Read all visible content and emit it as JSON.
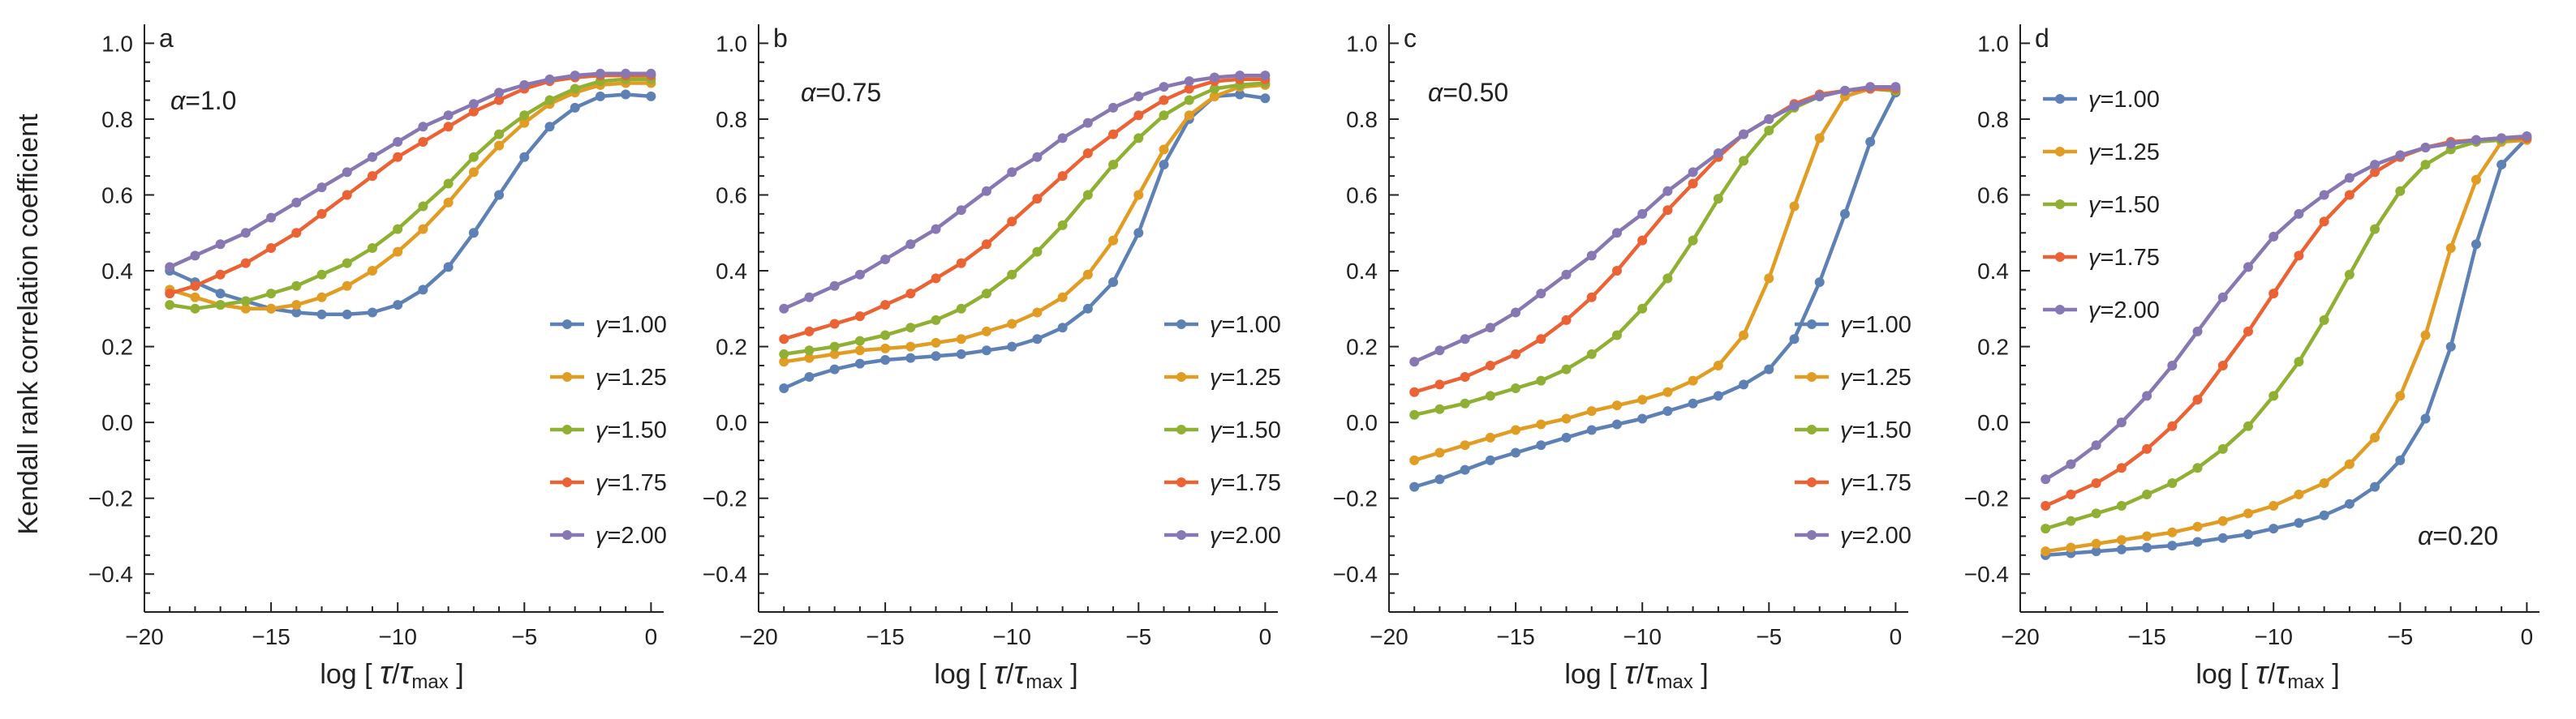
{
  "figure": {
    "ylabel": "Kendall rank correlation coefficient",
    "xlabel": {
      "prefix": "log",
      "tau": "τ",
      "slash": "/",
      "max": "max"
    }
  },
  "colors": {
    "γ=1.00": "#5e81b5",
    "γ=1.25": "#e19c24",
    "γ=1.50": "#8fb032",
    "γ=1.75": "#eb6235",
    "γ=2.00": "#8778b3"
  },
  "chart_data": [
    {
      "type": "line",
      "panel": "a",
      "annotation": "α=1.0",
      "xlabel": "log [τ/τmax]",
      "ylabel": "Kendall rank correlation coefficient",
      "xlim": [
        -20,
        0.5
      ],
      "ylim": [
        -0.5,
        1.05
      ],
      "xticks": [
        -20,
        -15,
        -10,
        -5,
        0
      ],
      "yticks": [
        -0.4,
        -0.2,
        0.0,
        0.2,
        0.4,
        0.6,
        0.8,
        1.0
      ],
      "legend": "right",
      "x": [
        -19,
        -18,
        -17,
        -16,
        -15,
        -14,
        -13,
        -12,
        -11,
        -10,
        -9,
        -8,
        -7,
        -6,
        -5,
        -4,
        -3,
        -2,
        -1,
        0
      ],
      "series": [
        {
          "name": "γ=1.00",
          "values": [
            0.4,
            0.37,
            0.34,
            0.32,
            0.3,
            0.29,
            0.285,
            0.285,
            0.29,
            0.31,
            0.35,
            0.41,
            0.5,
            0.6,
            0.7,
            0.78,
            0.83,
            0.86,
            0.865,
            0.86
          ]
        },
        {
          "name": "γ=1.25",
          "values": [
            0.35,
            0.33,
            0.31,
            0.3,
            0.3,
            0.31,
            0.33,
            0.36,
            0.4,
            0.45,
            0.51,
            0.58,
            0.66,
            0.73,
            0.79,
            0.84,
            0.87,
            0.89,
            0.895,
            0.895
          ]
        },
        {
          "name": "γ=1.50",
          "values": [
            0.31,
            0.3,
            0.31,
            0.32,
            0.34,
            0.36,
            0.39,
            0.42,
            0.46,
            0.51,
            0.57,
            0.63,
            0.7,
            0.76,
            0.81,
            0.85,
            0.88,
            0.9,
            0.905,
            0.905
          ]
        },
        {
          "name": "γ=1.75",
          "values": [
            0.34,
            0.36,
            0.39,
            0.42,
            0.46,
            0.5,
            0.55,
            0.6,
            0.65,
            0.7,
            0.74,
            0.78,
            0.82,
            0.85,
            0.88,
            0.9,
            0.91,
            0.915,
            0.915,
            0.915
          ]
        },
        {
          "name": "γ=2.00",
          "values": [
            0.41,
            0.44,
            0.47,
            0.5,
            0.54,
            0.58,
            0.62,
            0.66,
            0.7,
            0.74,
            0.78,
            0.81,
            0.84,
            0.87,
            0.89,
            0.905,
            0.915,
            0.92,
            0.92,
            0.92
          ]
        }
      ]
    },
    {
      "type": "line",
      "panel": "b",
      "annotation": "α=0.75",
      "xlabel": "log [τ/τmax]",
      "xlim": [
        -20,
        0.5
      ],
      "ylim": [
        -0.5,
        1.05
      ],
      "xticks": [
        -20,
        -15,
        -10,
        -5,
        0
      ],
      "yticks": [
        -0.4,
        -0.2,
        0.0,
        0.2,
        0.4,
        0.6,
        0.8,
        1.0
      ],
      "legend": "right",
      "x": [
        -19,
        -18,
        -17,
        -16,
        -15,
        -14,
        -13,
        -12,
        -11,
        -10,
        -9,
        -8,
        -7,
        -6,
        -5,
        -4,
        -3,
        -2,
        -1,
        0
      ],
      "series": [
        {
          "name": "γ=1.00",
          "values": [
            0.09,
            0.12,
            0.14,
            0.155,
            0.165,
            0.17,
            0.175,
            0.18,
            0.19,
            0.2,
            0.22,
            0.25,
            0.3,
            0.37,
            0.5,
            0.68,
            0.8,
            0.86,
            0.865,
            0.855
          ]
        },
        {
          "name": "γ=1.25",
          "values": [
            0.16,
            0.17,
            0.18,
            0.19,
            0.195,
            0.2,
            0.21,
            0.22,
            0.24,
            0.26,
            0.29,
            0.33,
            0.39,
            0.48,
            0.6,
            0.72,
            0.81,
            0.86,
            0.885,
            0.89
          ]
        },
        {
          "name": "γ=1.50",
          "values": [
            0.18,
            0.19,
            0.2,
            0.215,
            0.23,
            0.25,
            0.27,
            0.3,
            0.34,
            0.39,
            0.45,
            0.52,
            0.6,
            0.68,
            0.75,
            0.81,
            0.85,
            0.88,
            0.89,
            0.895
          ]
        },
        {
          "name": "γ=1.75",
          "values": [
            0.22,
            0.24,
            0.26,
            0.28,
            0.31,
            0.34,
            0.38,
            0.42,
            0.47,
            0.53,
            0.59,
            0.65,
            0.71,
            0.76,
            0.81,
            0.85,
            0.88,
            0.9,
            0.905,
            0.905
          ]
        },
        {
          "name": "γ=2.00",
          "values": [
            0.3,
            0.33,
            0.36,
            0.39,
            0.43,
            0.47,
            0.51,
            0.56,
            0.61,
            0.66,
            0.7,
            0.75,
            0.79,
            0.83,
            0.86,
            0.885,
            0.9,
            0.91,
            0.915,
            0.915
          ]
        }
      ]
    },
    {
      "type": "line",
      "panel": "c",
      "annotation": "α=0.50",
      "xlabel": "log [τ/τmax]",
      "xlim": [
        -20,
        0.5
      ],
      "ylim": [
        -0.5,
        1.05
      ],
      "xticks": [
        -20,
        -15,
        -10,
        -5,
        0
      ],
      "yticks": [
        -0.4,
        -0.2,
        0.0,
        0.2,
        0.4,
        0.6,
        0.8,
        1.0
      ],
      "legend": "right",
      "x": [
        -19,
        -18,
        -17,
        -16,
        -15,
        -14,
        -13,
        -12,
        -11,
        -10,
        -9,
        -8,
        -7,
        -6,
        -5,
        -4,
        -3,
        -2,
        -1,
        0
      ],
      "series": [
        {
          "name": "γ=1.00",
          "values": [
            -0.17,
            -0.15,
            -0.125,
            -0.1,
            -0.08,
            -0.06,
            -0.04,
            -0.02,
            -0.005,
            0.01,
            0.03,
            0.05,
            0.07,
            0.1,
            0.14,
            0.22,
            0.37,
            0.55,
            0.74,
            0.87
          ]
        },
        {
          "name": "γ=1.25",
          "values": [
            -0.1,
            -0.08,
            -0.06,
            -0.04,
            -0.02,
            -0.005,
            0.01,
            0.03,
            0.045,
            0.06,
            0.08,
            0.11,
            0.15,
            0.23,
            0.38,
            0.57,
            0.75,
            0.86,
            0.88,
            0.875
          ]
        },
        {
          "name": "γ=1.50",
          "values": [
            0.02,
            0.035,
            0.05,
            0.07,
            0.09,
            0.11,
            0.14,
            0.18,
            0.23,
            0.3,
            0.38,
            0.48,
            0.59,
            0.69,
            0.77,
            0.83,
            0.86,
            0.875,
            0.88,
            0.875
          ]
        },
        {
          "name": "γ=1.75",
          "values": [
            0.08,
            0.1,
            0.12,
            0.15,
            0.18,
            0.22,
            0.27,
            0.33,
            0.4,
            0.48,
            0.56,
            0.63,
            0.7,
            0.76,
            0.8,
            0.84,
            0.865,
            0.875,
            0.88,
            0.88
          ]
        },
        {
          "name": "γ=2.00",
          "values": [
            0.16,
            0.19,
            0.22,
            0.25,
            0.29,
            0.34,
            0.39,
            0.44,
            0.5,
            0.55,
            0.61,
            0.66,
            0.71,
            0.76,
            0.8,
            0.835,
            0.86,
            0.875,
            0.885,
            0.885
          ]
        }
      ]
    },
    {
      "type": "line",
      "panel": "d",
      "annotation": "α=0.20",
      "xlabel": "log [τ/τmax]",
      "xlim": [
        -20,
        0.5
      ],
      "ylim": [
        -0.5,
        1.05
      ],
      "xticks": [
        -20,
        -15,
        -10,
        -5,
        0
      ],
      "yticks": [
        -0.4,
        -0.2,
        0.0,
        0.2,
        0.4,
        0.6,
        0.8,
        1.0
      ],
      "legend": "top-left",
      "x": [
        -19,
        -18,
        -17,
        -16,
        -15,
        -14,
        -13,
        -12,
        -11,
        -10,
        -9,
        -8,
        -7,
        -6,
        -5,
        -4,
        -3,
        -2,
        -1,
        0
      ],
      "series": [
        {
          "name": "γ=1.00",
          "values": [
            -0.35,
            -0.345,
            -0.34,
            -0.335,
            -0.33,
            -0.325,
            -0.315,
            -0.305,
            -0.295,
            -0.28,
            -0.265,
            -0.245,
            -0.215,
            -0.17,
            -0.1,
            0.01,
            0.2,
            0.47,
            0.68,
            0.75
          ]
        },
        {
          "name": "γ=1.25",
          "values": [
            -0.34,
            -0.33,
            -0.32,
            -0.31,
            -0.3,
            -0.29,
            -0.275,
            -0.26,
            -0.24,
            -0.22,
            -0.19,
            -0.16,
            -0.11,
            -0.04,
            0.07,
            0.23,
            0.46,
            0.64,
            0.74,
            0.745
          ]
        },
        {
          "name": "γ=1.50",
          "values": [
            -0.28,
            -0.26,
            -0.24,
            -0.22,
            -0.19,
            -0.16,
            -0.12,
            -0.07,
            -0.01,
            0.07,
            0.16,
            0.27,
            0.39,
            0.51,
            0.61,
            0.68,
            0.72,
            0.74,
            0.745,
            0.75
          ]
        },
        {
          "name": "γ=1.75",
          "values": [
            -0.22,
            -0.19,
            -0.16,
            -0.12,
            -0.07,
            -0.01,
            0.06,
            0.15,
            0.24,
            0.34,
            0.44,
            0.53,
            0.6,
            0.66,
            0.7,
            0.725,
            0.74,
            0.745,
            0.75,
            0.75
          ]
        },
        {
          "name": "γ=2.00",
          "values": [
            -0.15,
            -0.11,
            -0.06,
            0.0,
            0.07,
            0.15,
            0.24,
            0.33,
            0.41,
            0.49,
            0.55,
            0.6,
            0.645,
            0.68,
            0.705,
            0.725,
            0.735,
            0.745,
            0.75,
            0.755
          ]
        }
      ]
    }
  ]
}
